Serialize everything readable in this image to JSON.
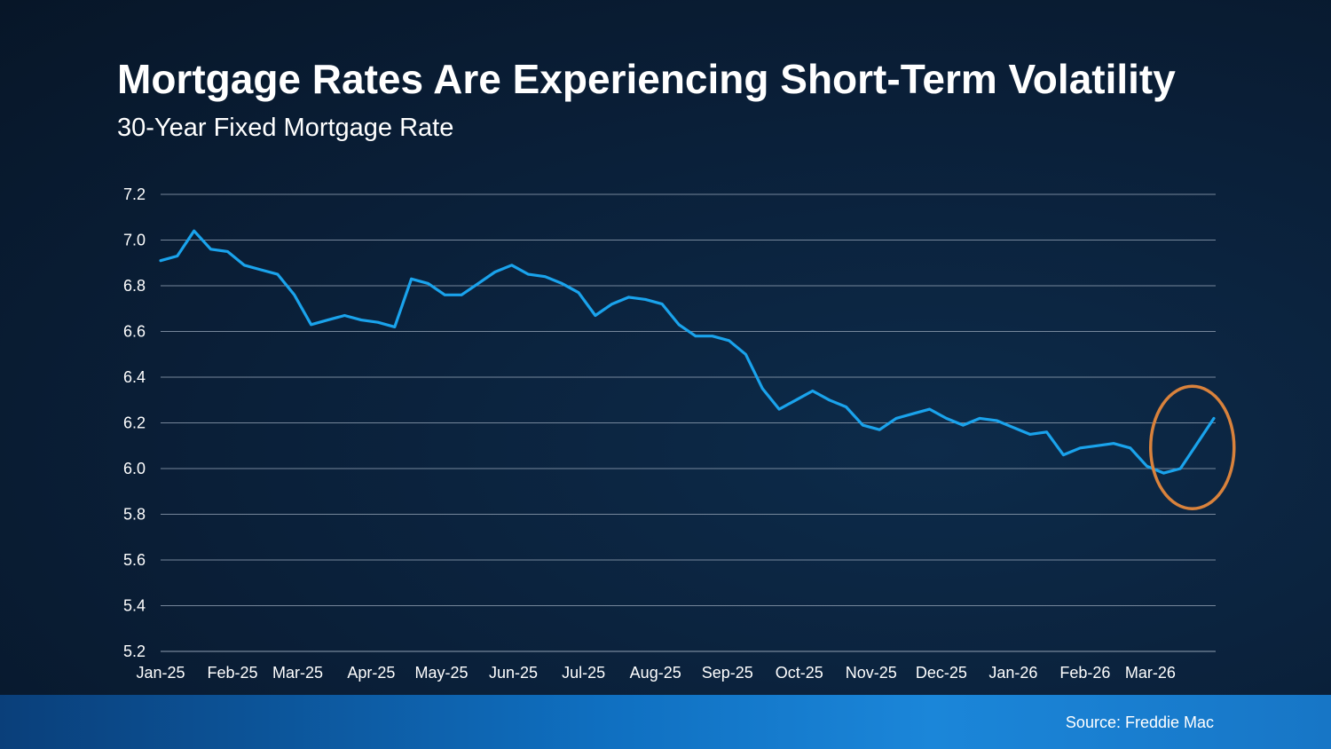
{
  "slide": {
    "title": "Mortgage Rates Are Experiencing Short-Term Volatility",
    "subtitle": "30-Year Fixed Mortgage Rate",
    "source": "Source: Freddie Mac"
  },
  "colors": {
    "line": "#1aa3ec",
    "grid": "#8a99ab",
    "highlight": "#d9823c",
    "footer": "#1776c6"
  },
  "chart_data": {
    "type": "line",
    "title": "Mortgage Rates Are Experiencing Short-Term Volatility",
    "subtitle": "30-Year Fixed Mortgage Rate",
    "xlabel": "",
    "ylabel": "",
    "ylim": [
      5.2,
      7.2
    ],
    "yticks": [
      7.2,
      7.0,
      6.8,
      6.6,
      6.4,
      6.2,
      6.0,
      5.8,
      5.6,
      5.4,
      5.2
    ],
    "ytick_labels": [
      "7.2",
      "7.0",
      "6.8",
      "6.6",
      "6.4",
      "6.2",
      "6.0",
      "5.8",
      "5.6",
      "5.4",
      "5.2"
    ],
    "x_month_labels": [
      {
        "label": "Jan-25",
        "index": 0
      },
      {
        "label": "Feb-25",
        "index": 4.3
      },
      {
        "label": "Mar-25",
        "index": 8.2
      },
      {
        "label": "Apr-25",
        "index": 12.6
      },
      {
        "label": "May-25",
        "index": 16.8
      },
      {
        "label": "Jun-25",
        "index": 21.1
      },
      {
        "label": "Jul-25",
        "index": 25.3
      },
      {
        "label": "Aug-25",
        "index": 29.6
      },
      {
        "label": "Sep-25",
        "index": 33.9
      },
      {
        "label": "Oct-25",
        "index": 38.2
      },
      {
        "label": "Nov-25",
        "index": 42.5
      },
      {
        "label": "Dec-25",
        "index": 46.7
      },
      {
        "label": "Jan-26",
        "index": 51.0
      },
      {
        "label": "Feb-26",
        "index": 55.3
      },
      {
        "label": "Mar-26",
        "index": 59.2
      }
    ],
    "grid": true,
    "legend": "none",
    "series": [
      {
        "values": [
          6.91,
          6.93,
          7.04,
          6.96,
          6.95,
          6.89,
          6.87,
          6.85,
          6.76,
          6.63,
          6.65,
          6.67,
          6.65,
          6.64,
          6.62,
          6.83,
          6.81,
          6.76,
          6.76,
          6.81,
          6.86,
          6.89,
          6.85,
          6.84,
          6.81,
          6.77,
          6.67,
          6.72,
          6.75,
          6.74,
          6.72,
          6.63,
          6.58,
          6.58,
          6.56,
          6.5,
          6.35,
          6.26,
          6.3,
          6.34,
          6.3,
          6.27,
          6.19,
          6.17,
          6.22,
          6.24,
          6.26,
          6.22,
          6.19,
          6.22,
          6.21,
          6.18,
          6.15,
          6.16,
          6.06,
          6.09,
          6.1,
          6.11,
          6.09,
          6.01,
          5.98,
          6.0,
          6.11,
          6.22
        ]
      }
    ],
    "annotations": [
      {
        "type": "ellipse",
        "around": "last 4 points",
        "color": "#d9823c"
      }
    ]
  }
}
